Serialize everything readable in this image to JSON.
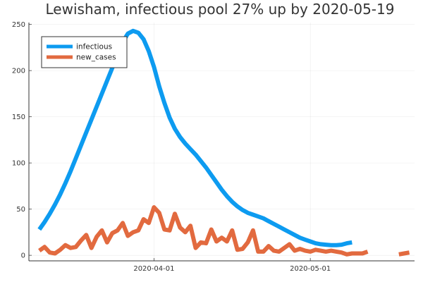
{
  "chart_data": {
    "type": "line",
    "title": "Lewisham, infectious pool 27% up by 2020-05-19",
    "xlabel": "",
    "ylabel": "",
    "x_start": "2020-03-10",
    "x_end": "2020-05-19",
    "xlim": [
      "2020-03-08",
      "2020-05-21"
    ],
    "ylim": [
      -6,
      252
    ],
    "x_ticks": [
      "2020-04-01",
      "2020-05-01"
    ],
    "y_ticks": [
      0,
      50,
      100,
      150,
      200,
      250
    ],
    "grid": true,
    "legend_position": "top-left",
    "series": [
      {
        "name": "infectious",
        "color": "#0d9bf0",
        "values": [
          28,
          36,
          45,
          55,
          66,
          78,
          91,
          105,
          119,
          133,
          147,
          161,
          175,
          189,
          203,
          217,
          231,
          240,
          243,
          241,
          234,
          221,
          204,
          183,
          165,
          149,
          137,
          128,
          121,
          115,
          109,
          102,
          95,
          87,
          79,
          71,
          64,
          58,
          53,
          49,
          46,
          44,
          42,
          40,
          37,
          34,
          31,
          28,
          25,
          22,
          19,
          17,
          15,
          13,
          12,
          11.5,
          11,
          11,
          11.5,
          13,
          14
        ]
      },
      {
        "name": "new_cases",
        "color": "#e26a3f",
        "values": [
          5,
          9,
          3,
          2,
          6,
          11,
          8,
          9,
          16,
          22,
          8,
          20,
          27,
          14,
          24,
          27,
          35,
          21,
          25,
          27,
          39,
          35,
          52,
          46,
          28,
          27,
          45,
          30,
          25,
          32,
          8,
          14,
          13,
          28,
          15,
          19,
          15,
          27,
          6,
          7,
          14,
          27,
          4,
          4,
          10,
          5,
          4,
          8,
          12,
          5,
          7,
          5,
          4,
          6,
          5,
          4,
          5,
          4,
          3,
          1,
          2,
          2,
          2,
          4,
          null,
          null,
          null,
          null,
          null,
          1,
          2,
          3
        ]
      }
    ]
  }
}
